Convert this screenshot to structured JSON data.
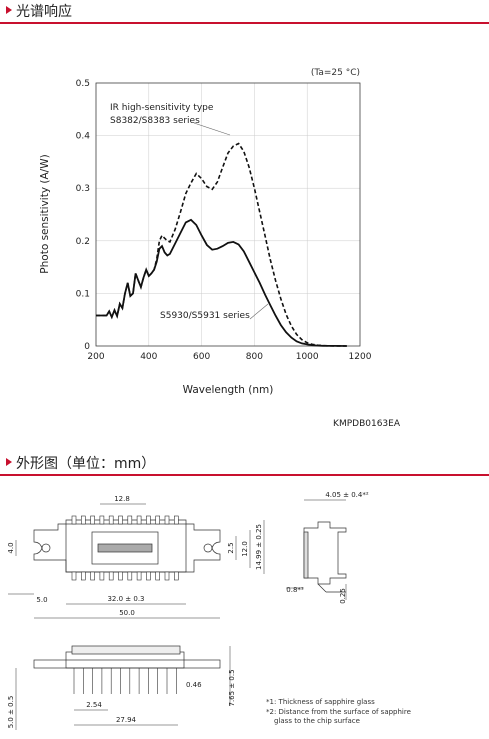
{
  "section1": {
    "title": "光谱响应"
  },
  "chart_data": {
    "type": "line",
    "xlabel": "Wavelength (nm)",
    "ylabel": "Photo sensitivity (A/W)",
    "condition": "(Ta=25 °C)",
    "code": "KMPDB0163EA",
    "xlim": [
      200,
      1200
    ],
    "ylim": [
      0,
      0.5
    ],
    "xticks": [
      "200",
      "400",
      "600",
      "800",
      "1000",
      "1200"
    ],
    "yticks": [
      "0",
      "0.1",
      "0.2",
      "0.3",
      "0.4",
      "0.5"
    ],
    "series": [
      {
        "name": "IR high-sensitivity type S8382/S8383 series",
        "label_line1": "IR high-sensitivity type",
        "label_line2": "S8382/S8383 series",
        "style": "dashed",
        "x": [
          200,
          240,
          250,
          260,
          270,
          280,
          290,
          300,
          310,
          320,
          330,
          340,
          350,
          360,
          370,
          380,
          390,
          400,
          410,
          420,
          430,
          440,
          450,
          460,
          470,
          480,
          500,
          520,
          540,
          560,
          580,
          600,
          620,
          640,
          660,
          680,
          700,
          720,
          740,
          760,
          780,
          800,
          820,
          840,
          860,
          880,
          900,
          920,
          940,
          960,
          980,
          1000,
          1020,
          1040,
          1060,
          1080,
          1100,
          1120,
          1150
        ],
        "y": [
          0.058,
          0.058,
          0.066,
          0.055,
          0.068,
          0.057,
          0.08,
          0.072,
          0.1,
          0.12,
          0.095,
          0.1,
          0.138,
          0.125,
          0.112,
          0.13,
          0.145,
          0.133,
          0.138,
          0.145,
          0.165,
          0.2,
          0.21,
          0.205,
          0.2,
          0.198,
          0.222,
          0.255,
          0.29,
          0.31,
          0.328,
          0.318,
          0.303,
          0.298,
          0.312,
          0.34,
          0.367,
          0.38,
          0.385,
          0.37,
          0.34,
          0.3,
          0.255,
          0.21,
          0.165,
          0.125,
          0.09,
          0.06,
          0.038,
          0.022,
          0.012,
          0.006,
          0.003,
          0.0015,
          0.0008,
          0.0004,
          0.0002,
          0.0001,
          0
        ]
      },
      {
        "name": "S5930/S5931 series",
        "style": "solid",
        "x": [
          200,
          240,
          250,
          260,
          270,
          280,
          290,
          300,
          310,
          320,
          330,
          340,
          350,
          360,
          370,
          380,
          390,
          400,
          410,
          420,
          430,
          440,
          450,
          460,
          470,
          480,
          500,
          520,
          540,
          560,
          580,
          600,
          620,
          640,
          660,
          680,
          700,
          720,
          740,
          760,
          780,
          800,
          820,
          840,
          860,
          880,
          900,
          920,
          940,
          960,
          980,
          1000,
          1020,
          1040,
          1060,
          1080,
          1100,
          1150
        ],
        "y": [
          0.058,
          0.058,
          0.066,
          0.055,
          0.068,
          0.057,
          0.08,
          0.072,
          0.1,
          0.12,
          0.095,
          0.1,
          0.138,
          0.125,
          0.112,
          0.13,
          0.145,
          0.133,
          0.138,
          0.145,
          0.16,
          0.185,
          0.19,
          0.178,
          0.172,
          0.175,
          0.195,
          0.215,
          0.235,
          0.24,
          0.23,
          0.21,
          0.192,
          0.183,
          0.185,
          0.19,
          0.196,
          0.198,
          0.193,
          0.18,
          0.16,
          0.14,
          0.12,
          0.098,
          0.078,
          0.058,
          0.04,
          0.026,
          0.016,
          0.009,
          0.005,
          0.003,
          0.0015,
          0.0008,
          0.0004,
          0.0002,
          0.0001,
          0
        ]
      }
    ]
  },
  "section2": {
    "title": "外形图（单位：mm）"
  },
  "dims": {
    "d12_8": "12.8",
    "d4_05": "4.05 ± 0.4*²",
    "d2_5": "2.5",
    "d12_0": "12.0",
    "d14_99": "14.99 ± 0.25",
    "d4_0": "4.0",
    "d5_0": "5.0",
    "d32_0": "32.0 ± 0.3",
    "d50_0": "50.0",
    "d0_8": "0.8*¹",
    "d0_25": "0.25",
    "d0_46": "0.46",
    "d7_65": "7.65 ± 0.5",
    "d5_0v": "5.0 ± 0.5",
    "d2_54": "2.54",
    "d27_94": "27.94"
  },
  "notes": {
    "n1": "*1: Thickness of sapphire glass",
    "n2a": "*2: Distance from the surface of sapphire",
    "n2b": "glass to the chip surface"
  }
}
